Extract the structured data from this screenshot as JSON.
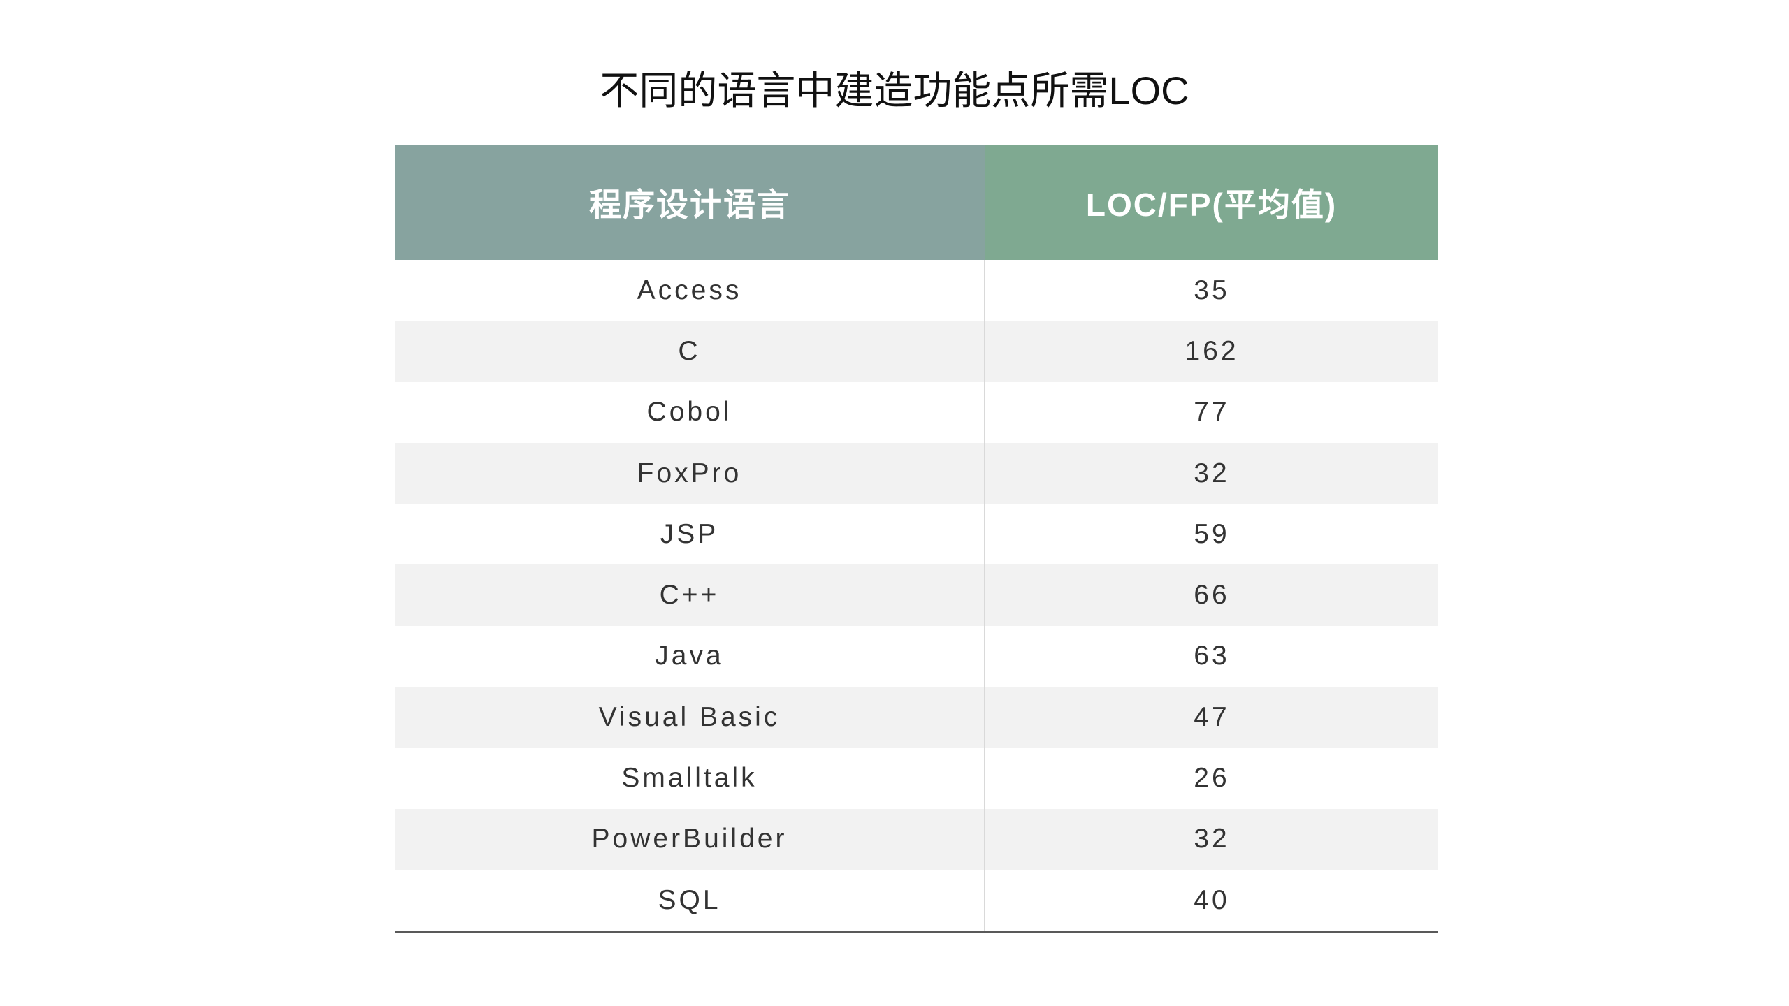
{
  "title": "不同的语言中建造功能点所需LOC",
  "table": {
    "header": [
      "程序设计语言",
      "LOC/FP(平均值)"
    ],
    "rows": [
      [
        "Access",
        35
      ],
      [
        "C",
        162
      ],
      [
        "Cobol",
        77
      ],
      [
        "FoxPro",
        32
      ],
      [
        "JSP",
        59
      ],
      [
        "C++",
        66
      ],
      [
        "Java",
        63
      ],
      [
        "Visual Basic",
        47
      ],
      [
        "Smalltalk",
        26
      ],
      [
        "PowerBuilder",
        32
      ],
      [
        "SQL",
        40
      ]
    ]
  }
}
